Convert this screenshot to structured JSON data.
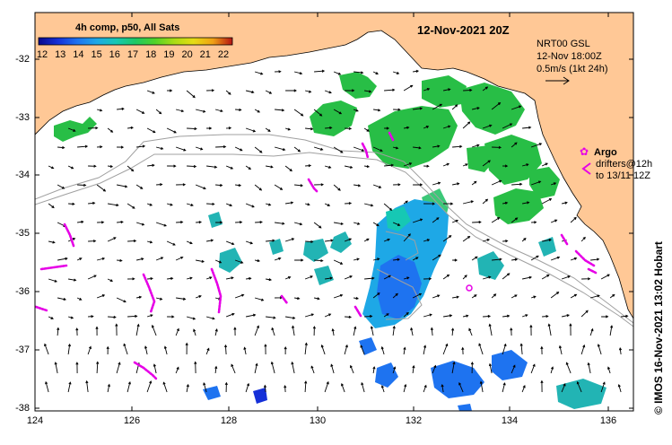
{
  "map": {
    "date_title": "12-Nov-2021 20Z",
    "colorbar": {
      "title": "4h comp, p50, All Sats",
      "ticks": [
        "12",
        "13",
        "14",
        "15",
        "16",
        "17",
        "18",
        "19",
        "20",
        "21",
        "22"
      ],
      "colors": [
        "#08088c",
        "#1530d8",
        "#1e73f0",
        "#1ea8e6",
        "#16c8b4",
        "#1ec864",
        "#50d228",
        "#aadc14",
        "#e6dc14",
        "#f0a014",
        "#e65014",
        "#b41414"
      ]
    },
    "current_info": {
      "line1": "NRT00 GSL",
      "line2": "12-Nov 18:00Z",
      "line3": "0.5m/s (1kt 24h)"
    },
    "argo": {
      "label": "Argo",
      "drifters_line1": "drifters@12h",
      "drifters_line2": "to 13/11 12Z",
      "symbol": "✿",
      "color": "#e600e6"
    },
    "credit": "©  IMOS 16-Nov-2021 13:02 Hobart",
    "x_ticks": [
      "124",
      "126",
      "128",
      "130",
      "132",
      "134",
      "136"
    ],
    "y_ticks": [
      "-32",
      "-33",
      "-34",
      "-35",
      "-36",
      "-37",
      "-38"
    ],
    "land_color": "#ffc896"
  }
}
